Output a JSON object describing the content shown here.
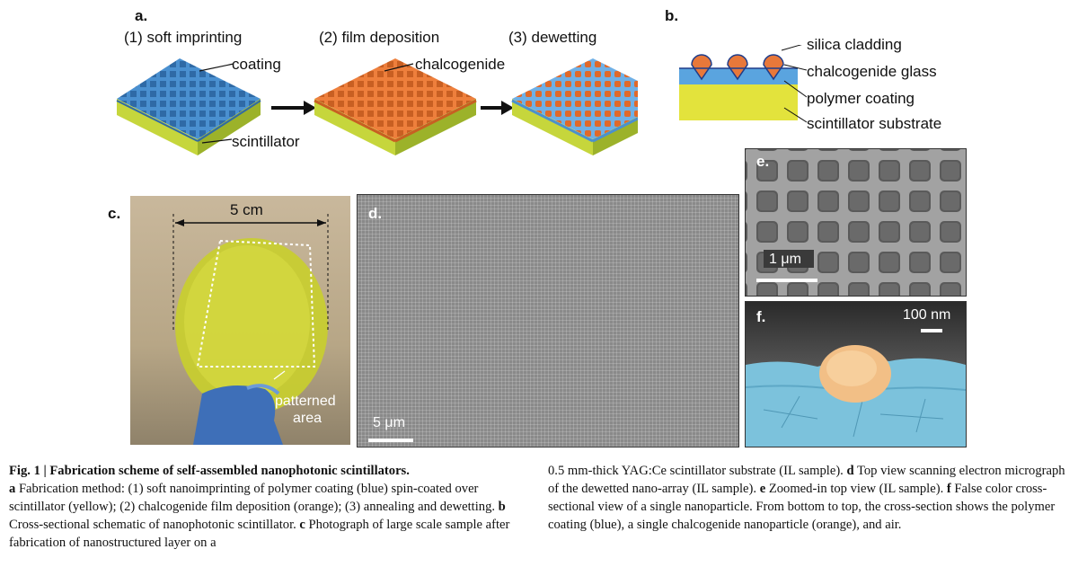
{
  "panels": {
    "a": {
      "label": "a.",
      "steps": [
        "(1) soft imprinting",
        "(2) film deposition",
        "(3) dewetting"
      ],
      "labels": {
        "coating": "coating",
        "scintillator": "scintillator",
        "chalcogenide": "chalcogenide"
      }
    },
    "b": {
      "label": "b.",
      "layers": [
        "silica cladding",
        "chalcogenide glass",
        "polymer coating",
        "scintillator substrate"
      ]
    },
    "c": {
      "label": "c.",
      "dimension": "5 cm",
      "patterned": "patterned",
      "area": "area"
    },
    "d": {
      "label": "d.",
      "scale": "5 μm"
    },
    "e": {
      "label": "e.",
      "scale": "1 μm"
    },
    "f": {
      "label": "f.",
      "scale": "100 nm"
    }
  },
  "caption": {
    "fig": "Fig. 1 | ",
    "title": "Fabrication scheme of self-assembled nanophotonic scintillators.",
    "a_key": "a",
    "a_text": " Fabrication method: (1) soft nanoimprinting of polymer coating (blue) spin-coated over scintillator (yellow); (2) chalcogenide film deposition (orange); (3) annealing and dewetting. ",
    "b_key": "b",
    "b_text": " Cross-sectional schematic of nanophotonic scintillator. ",
    "c_key": "c",
    "c_text": " Photograph of large scale sample after fabrication of nanostructured layer on a 0.5 mm-thick YAG:Ce scintillator substrate (IL sample). ",
    "d_key": "d",
    "d_text": " Top view scanning electron micrograph of the dewetted nano-array (IL sample). ",
    "e_key": "e",
    "e_text": " Zoomed-in top view (IL sample). ",
    "f_key": "f",
    "f_text": " False color cross-sectional view of a single nanoparticle. From bottom to top, the cross-section shows the polymer coating (blue), a single chalcogenide nanoparticle (orange), and air."
  },
  "colors": {
    "blue": "#4a90d0",
    "yellow": "#e2e23a",
    "orange": "#e8783a",
    "green": "#a3b635"
  }
}
